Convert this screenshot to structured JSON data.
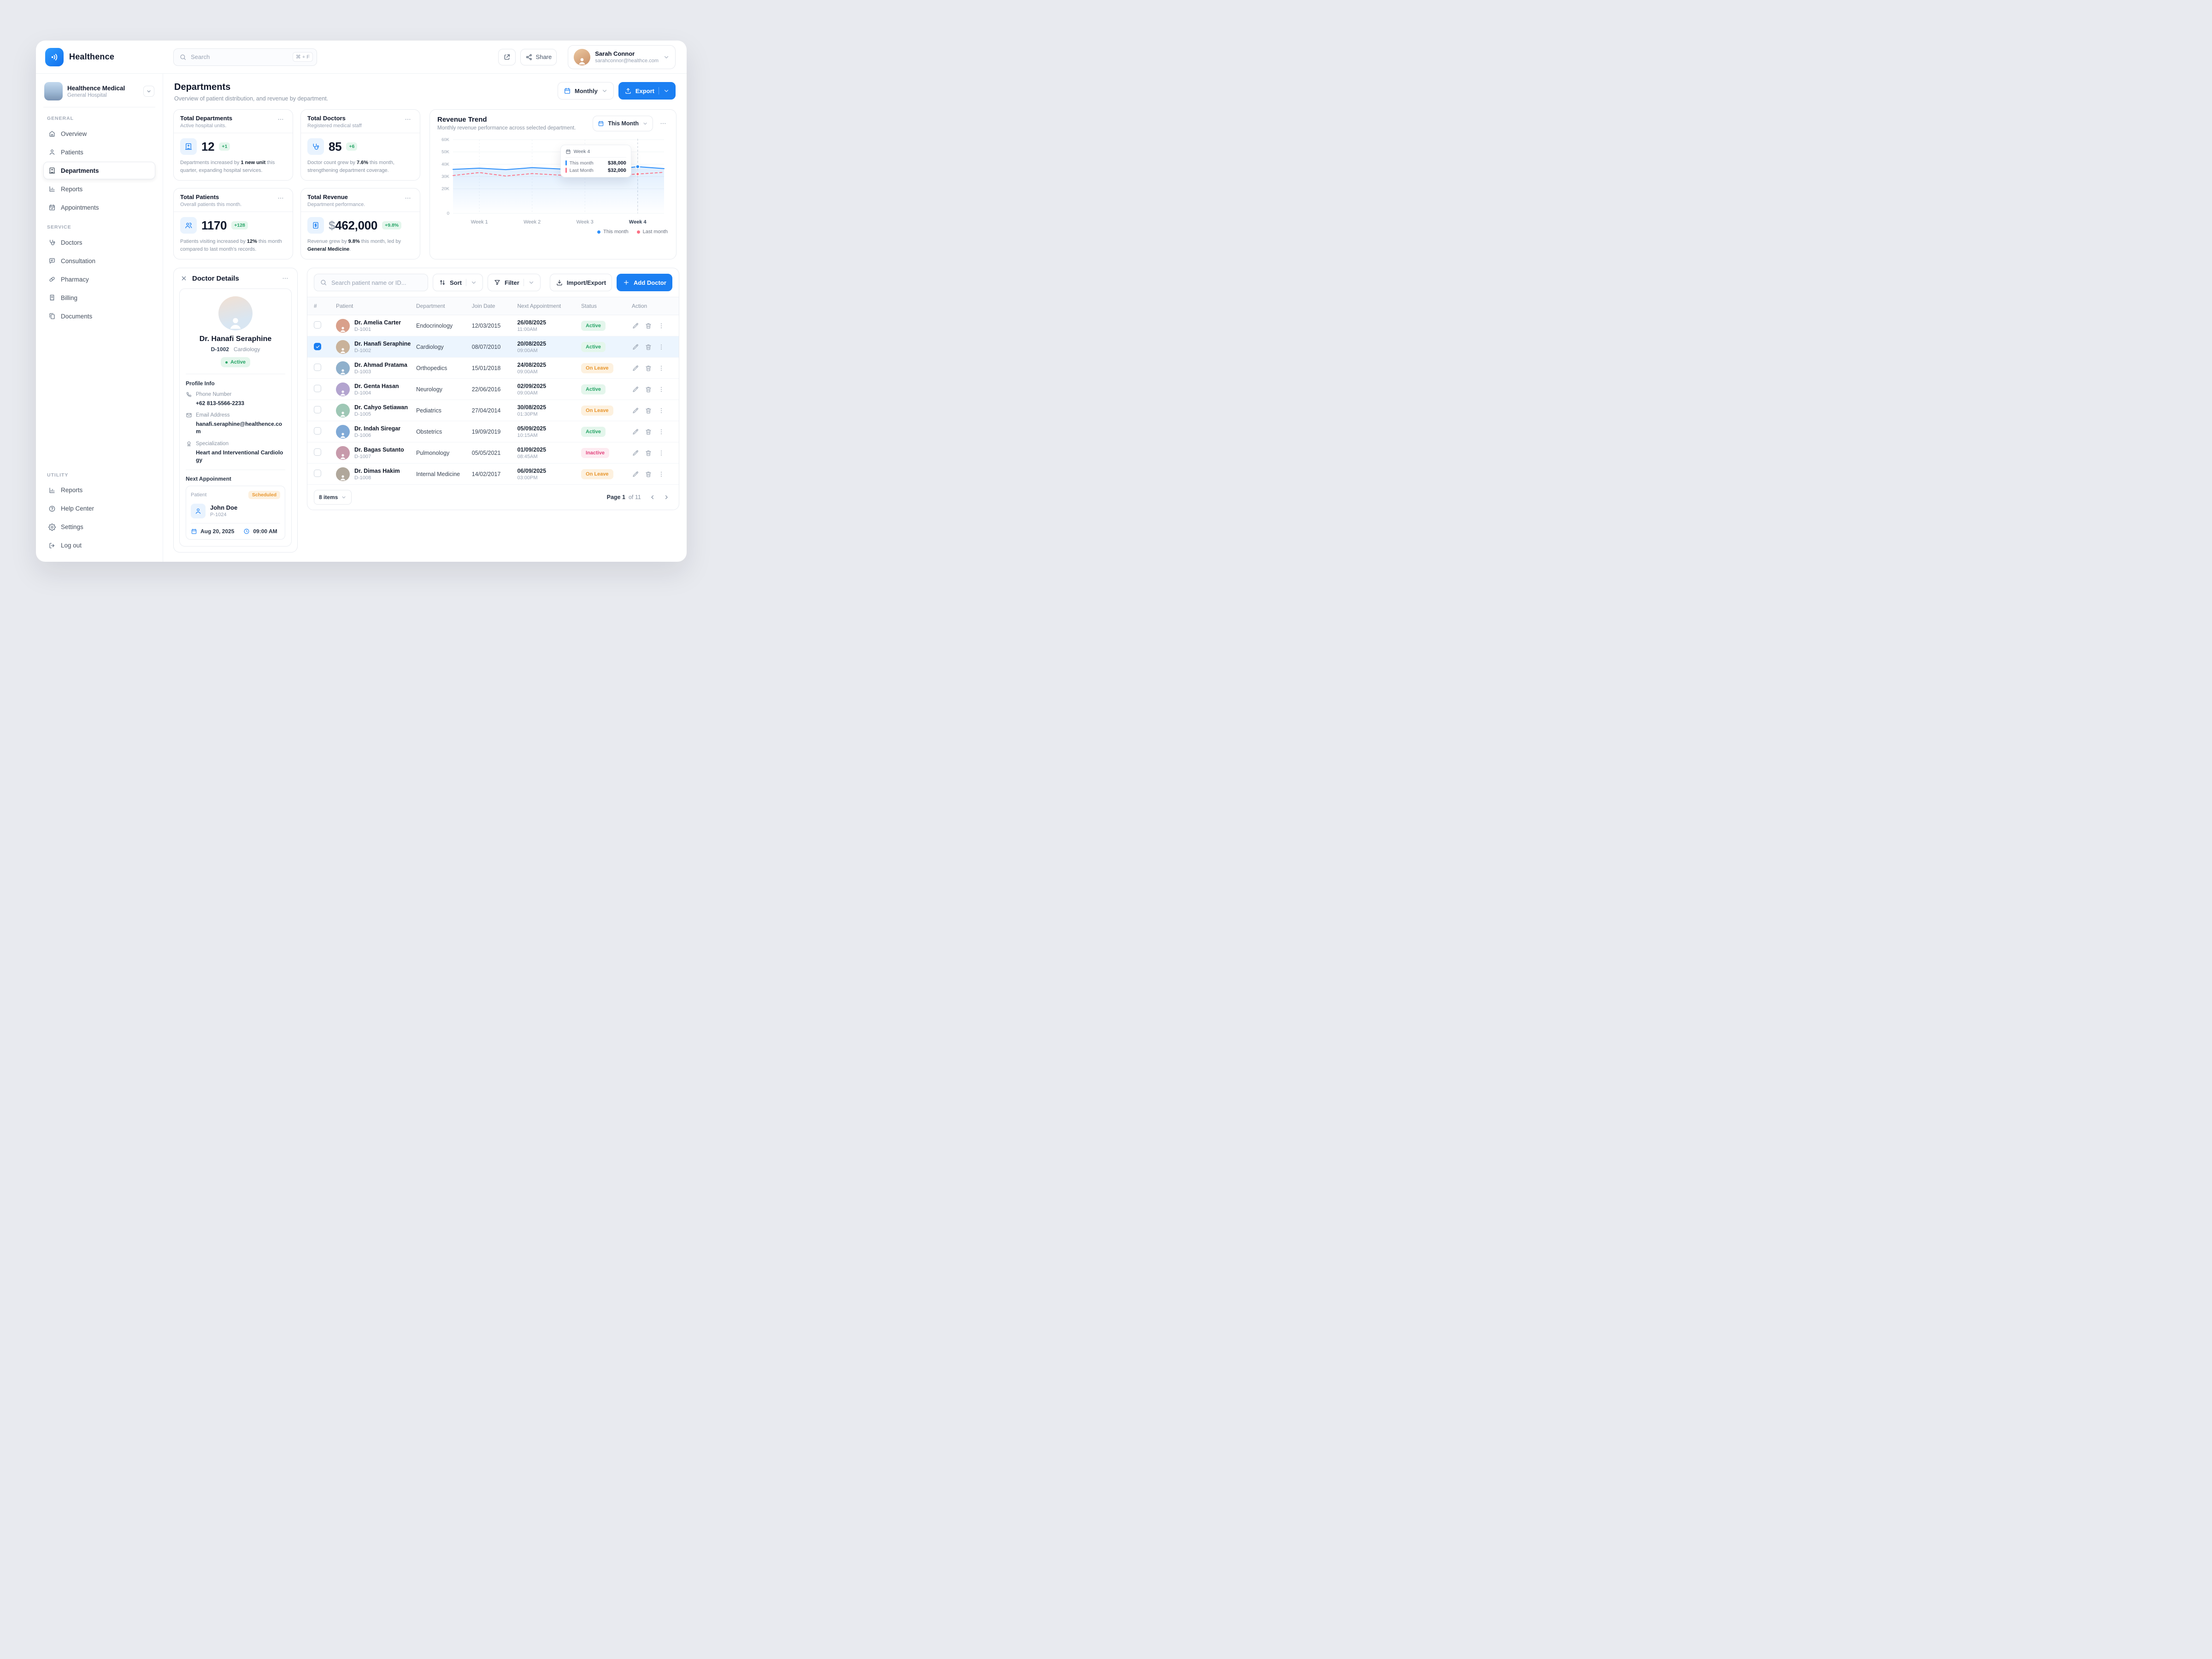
{
  "colors": {
    "primary": "#1b7ff2",
    "positive_green": "#27a567",
    "warning_orange": "#e8962e",
    "danger_pink": "#e2447e",
    "chart_this_month": "#2e90fa",
    "chart_last_month": "#fb7185"
  },
  "topbar": {
    "brand": "Healthence",
    "search_placeholder": "Search",
    "search_shortcut": "⌘ + F",
    "share": "Share",
    "user": {
      "name": "Sarah Connor",
      "email": "sarahconnor@healthce.com"
    }
  },
  "sidebar": {
    "org": {
      "name": "Healthence Medical",
      "type": "General Hospital"
    },
    "sections": [
      {
        "label": "GENERAL",
        "items": [
          {
            "icon": "home",
            "label": "Overview"
          },
          {
            "icon": "user",
            "label": "Patients"
          },
          {
            "icon": "building",
            "label": "Departments",
            "active": true
          },
          {
            "icon": "chart",
            "label": "Reports"
          },
          {
            "icon": "calendar-check",
            "label": "Appointments"
          }
        ]
      },
      {
        "label": "SERVICE",
        "items": [
          {
            "icon": "stethoscope",
            "label": "Doctors"
          },
          {
            "icon": "chat",
            "label": "Consultation"
          },
          {
            "icon": "capsule",
            "label": "Pharmacy"
          },
          {
            "icon": "receipt",
            "label": "Billing"
          },
          {
            "icon": "copy",
            "label": "Documents"
          }
        ]
      },
      {
        "label": "UTILITY",
        "items": [
          {
            "icon": "chart",
            "label": "Reports"
          },
          {
            "icon": "help",
            "label": "Help Center"
          },
          {
            "icon": "gear",
            "label": "Settings"
          },
          {
            "icon": "logout",
            "label": "Log out"
          }
        ]
      }
    ]
  },
  "page": {
    "title": "Departments",
    "subtitle": "Overview of patient distribution, and revenue by department.",
    "period": "Monthly",
    "export": "Export"
  },
  "stats": [
    {
      "icon": "building",
      "title": "Total Departments",
      "subtitle": "Active hospital units.",
      "prefix": "",
      "value": "12",
      "delta": "+1",
      "desc": [
        {
          "t": "Departments increased by "
        },
        {
          "t": "1 new unit",
          "b": true
        },
        {
          "t": " this quarter, expanding hospital services."
        }
      ]
    },
    {
      "icon": "stethoscope",
      "title": "Total Doctors",
      "subtitle": "Registered medical staff",
      "prefix": "",
      "value": "85",
      "delta": "+6",
      "desc": [
        {
          "t": "Doctor count grew by "
        },
        {
          "t": "7.6%",
          "b": true
        },
        {
          "t": " this month, strengthening department coverage."
        }
      ]
    },
    {
      "icon": "users",
      "title": "Total Patients",
      "subtitle": "Overall patients this month.",
      "prefix": "",
      "value": "1170",
      "delta": "+128",
      "desc": [
        {
          "t": "Patients visiting increased by "
        },
        {
          "t": "12%",
          "b": true
        },
        {
          "t": " this month compared to last month's records."
        }
      ]
    },
    {
      "icon": "invoice",
      "title": "Total Revenue",
      "subtitle": "Department performance.",
      "prefix": "$",
      "value": "462,000",
      "delta": "+9.8%",
      "desc": [
        {
          "t": "Revenue grew by "
        },
        {
          "t": "9.8%",
          "b": true
        },
        {
          "t": " this month, led by "
        },
        {
          "t": "General Medicine",
          "b": true
        },
        {
          "t": "."
        }
      ]
    }
  ],
  "revenue": {
    "title": "Revenue Trend",
    "subtitle": "Monthly revenue performance across selected department.",
    "range_label": "This Month"
  },
  "chart_data": {
    "type": "line",
    "title": "Revenue Trend",
    "x_weeks": [
      "Week 1",
      "Week 2",
      "Week 3",
      "Week 4"
    ],
    "week_point_indices": [
      1,
      3,
      5,
      7
    ],
    "marker_index": 7,
    "ylim": [
      0,
      60000
    ],
    "yticks": [
      {
        "label": "60K",
        "value": 60000
      },
      {
        "label": "50K",
        "value": 50000
      },
      {
        "label": "40K",
        "value": 40000
      },
      {
        "label": "30K",
        "value": 30000
      },
      {
        "label": "20K",
        "value": 20000
      },
      {
        "label": "0",
        "value": 0
      }
    ],
    "series": [
      {
        "name": "This month",
        "color": "#2e90fa",
        "dashed": false,
        "values": [
          35800,
          36800,
          35600,
          37200,
          36200,
          34800,
          35600,
          38000,
          36400
        ]
      },
      {
        "name": "Last month",
        "color": "#fb7185",
        "dashed": true,
        "values": [
          30800,
          33200,
          30400,
          32400,
          31200,
          29600,
          30800,
          32000,
          33400
        ]
      }
    ],
    "tooltip": {
      "title": "Week 4",
      "rows": [
        {
          "label": "This month",
          "value": "$38,000"
        },
        {
          "label": "Last Month",
          "value": "$32,000"
        }
      ]
    },
    "legend_position": "bottom-right"
  },
  "doctor_card": {
    "title": "Doctor Details",
    "name": "Dr. Hanafi Seraphine",
    "doctor_id": "D-1002",
    "department": "Cardiology",
    "status": "Active",
    "profile_section": "Profile Info",
    "fields": [
      {
        "icon": "phone",
        "label": "Phone Number",
        "value": "+62 813-5566-2233"
      },
      {
        "icon": "mail",
        "label": "Email Address",
        "value": "hanafi.seraphine@healthence.com"
      },
      {
        "icon": "award",
        "label": "Specialization",
        "value": "Heart and Interventional Cardiology"
      }
    ],
    "appointment": {
      "section": "Next Appoinment",
      "patient_label": "Patient",
      "badge": "Scheduled",
      "name": "John Doe",
      "patient_id": "P-1024",
      "date": "Aug 20, 2025",
      "time": "09:00 AM"
    }
  },
  "table": {
    "search_placeholder": "Search patient name or ID...",
    "sort_label": "Sort",
    "filter_label": "Filter",
    "import_label": "Import/Export",
    "add_label": "Add Doctor",
    "columns": [
      "#",
      "Patient",
      "Department",
      "Join Date",
      "Next Appointment",
      "Status",
      "Action"
    ],
    "rows": [
      {
        "name": "Dr. Amelia Carter",
        "id": "D-1001",
        "department": "Endocrinology",
        "join": "12/03/2015",
        "appt_date": "26/08/2025",
        "appt_time": "11:00AM",
        "status": "Active",
        "checked": false,
        "selected": false,
        "avatar_color": "#d9a08b"
      },
      {
        "name": "Dr. Hanafi Seraphine",
        "id": "D-1002",
        "department": "Cardiology",
        "join": "08/07/2010",
        "appt_date": "20/08/2025",
        "appt_time": "09:00AM",
        "status": "Active",
        "checked": true,
        "selected": true,
        "avatar_color": "#c9b29a"
      },
      {
        "name": "Dr. Ahmad Pratama",
        "id": "D-1003",
        "department": "Orthopedics",
        "join": "15/01/2018",
        "appt_date": "24/08/2025",
        "appt_time": "09:00AM",
        "status": "On Leave",
        "checked": false,
        "selected": false,
        "avatar_color": "#8fb0cc"
      },
      {
        "name": "Dr. Genta Hasan",
        "id": "D-1004",
        "department": "Neurology",
        "join": "22/06/2016",
        "appt_date": "02/09/2025",
        "appt_time": "09:00AM",
        "status": "Active",
        "checked": false,
        "selected": false,
        "avatar_color": "#b3a4cf"
      },
      {
        "name": "Dr. Cahyo Setiawan",
        "id": "D-1005",
        "department": "Pediatrics",
        "join": "27/04/2014",
        "appt_date": "30/08/2025",
        "appt_time": "01:30PM",
        "status": "On Leave",
        "checked": false,
        "selected": false,
        "avatar_color": "#9ec7b5"
      },
      {
        "name": "Dr. Indah Siregar",
        "id": "D-1006",
        "department": "Obstetrics",
        "join": "19/09/2019",
        "appt_date": "05/09/2025",
        "appt_time": "10:15AM",
        "status": "Active",
        "checked": false,
        "selected": false,
        "avatar_color": "#7fa9d6"
      },
      {
        "name": "Dr. Bagas Sutanto",
        "id": "D-1007",
        "department": "Pulmonology",
        "join": "05/05/2021",
        "appt_date": "01/09/2025",
        "appt_time": "08:45AM",
        "status": "Inactive",
        "checked": false,
        "selected": false,
        "avatar_color": "#c79aab"
      },
      {
        "name": "Dr. Dimas Hakim",
        "id": "D-1008",
        "department": "Internal Medicine",
        "join": "14/02/2017",
        "appt_date": "06/09/2025",
        "appt_time": "03:00PM",
        "status": "On Leave",
        "checked": false,
        "selected": false,
        "avatar_color": "#b0a79b"
      }
    ],
    "footer": {
      "items": "8 items",
      "page": "Page 1",
      "of": "of 11"
    }
  }
}
